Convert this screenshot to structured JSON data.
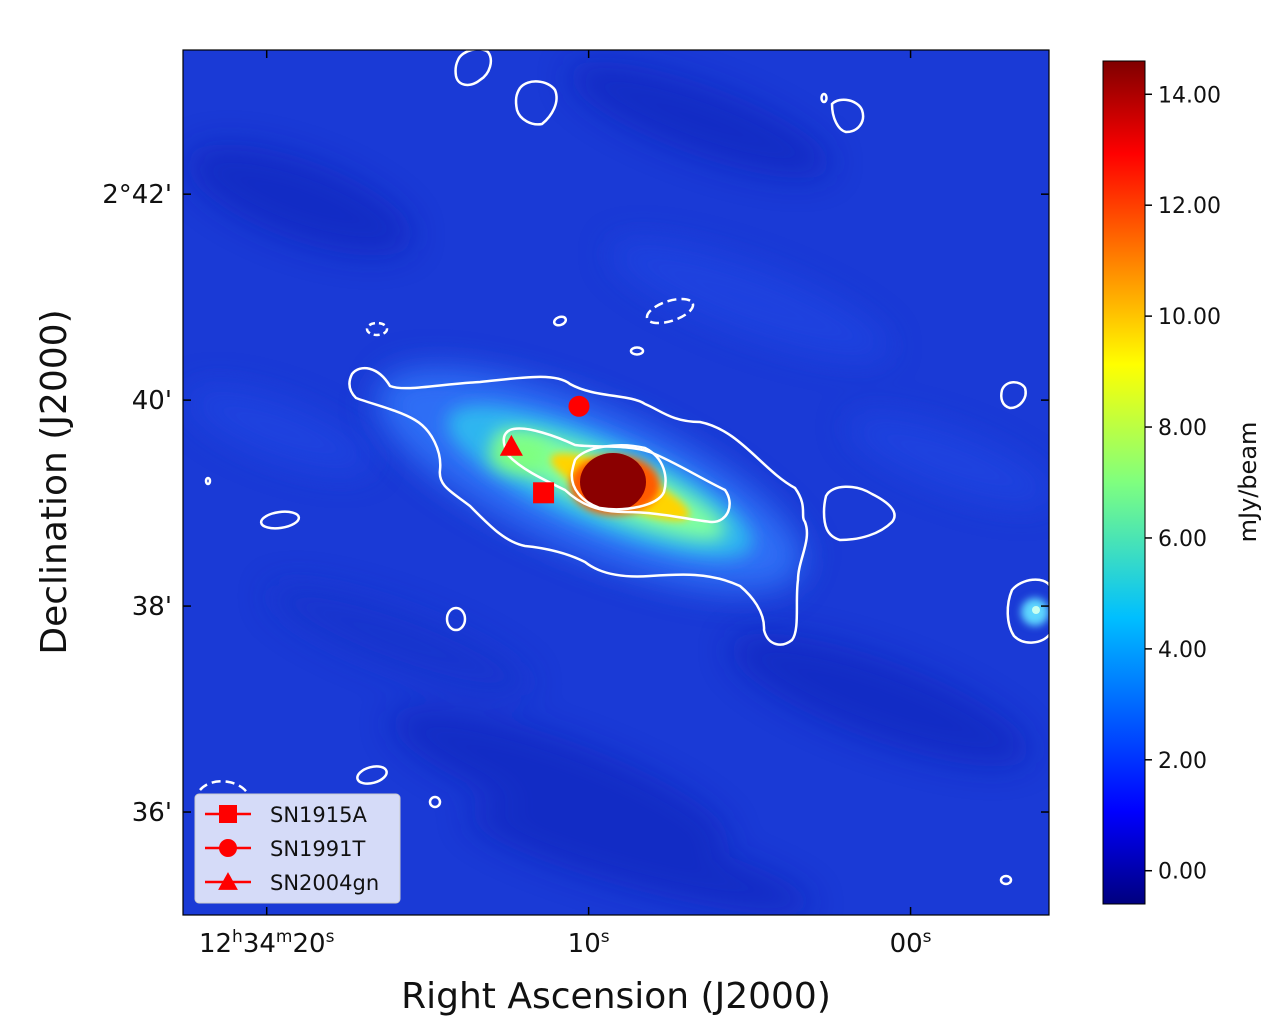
{
  "chart_data": {
    "type": "heatmap",
    "title": "",
    "xlabel": "Right Ascension (J2000)",
    "ylabel": "Declination (J2000)",
    "x_ticks": [
      {
        "ra_s": 20,
        "h": "12",
        "m": "34",
        "s": "20",
        "label": "12h34m20s"
      },
      {
        "ra_s": 10,
        "s": "10",
        "label": "10s"
      },
      {
        "ra_s": 0,
        "s": "00",
        "label": "00s"
      }
    ],
    "y_ticks": [
      {
        "dec_arcmin": 162,
        "label": "2°42'"
      },
      {
        "dec_arcmin": 160,
        "label": "40'"
      },
      {
        "dec_arcmin": 158,
        "label": "38'"
      },
      {
        "dec_arcmin": 156,
        "label": "36'"
      }
    ],
    "x_range_ra_s": [
      22.6,
      -4.3
    ],
    "y_range_dec_arcmin": [
      155.0,
      163.4
    ],
    "colorbar": {
      "label": "mJy/beam",
      "range": [
        -0.6,
        14.6
      ],
      "ticks": [
        "0.00",
        "2.00",
        "4.00",
        "6.00",
        "8.00",
        "10.00",
        "12.00",
        "14.00"
      ],
      "tick_values": [
        0,
        2,
        4,
        6,
        8,
        10,
        12,
        14
      ],
      "colormap": "jet"
    },
    "markers": [
      {
        "name": "SN1915A",
        "shape": "square",
        "ra_s": 11.4,
        "dec_arcmin": 159.1,
        "color": "#ff0000"
      },
      {
        "name": "SN1991T",
        "shape": "circle",
        "ra_s": 10.3,
        "dec_arcmin": 159.94,
        "color": "#ff0000"
      },
      {
        "name": "SN2004gn",
        "shape": "triangle",
        "ra_s": 12.4,
        "dec_arcmin": 159.55,
        "color": "#ff0000"
      }
    ],
    "legend": {
      "placement": "bottom-left",
      "entries": [
        "SN1915A",
        "SN1991T",
        "SN2004gn"
      ]
    },
    "contour_color": "#ffffff",
    "grid": false
  }
}
